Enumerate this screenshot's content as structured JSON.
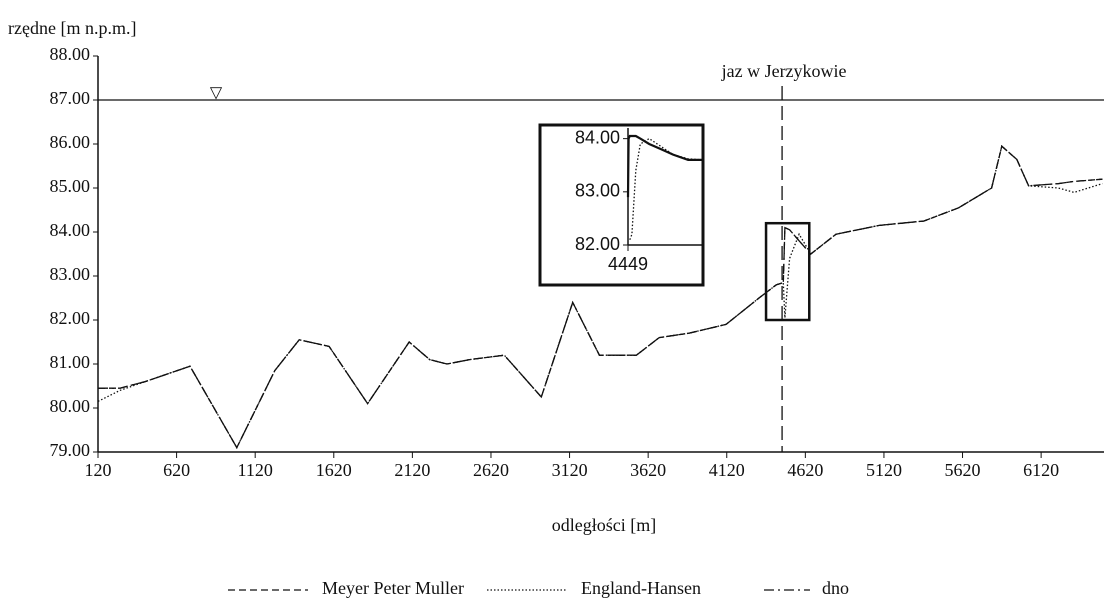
{
  "chart_data": [
    {
      "type": "line",
      "y_label": "rzędne [m n.p.m.]",
      "x_label": "odległości [m]",
      "xlim": [
        120,
        6520
      ],
      "ylim": [
        79,
        88
      ],
      "xticks": [
        120,
        620,
        1120,
        1620,
        2120,
        2620,
        3120,
        3620,
        4120,
        4620,
        5120,
        5620,
        6120
      ],
      "yticks": [
        {
          "value": 79,
          "label": "79.00"
        },
        {
          "value": 80,
          "label": "80.00"
        },
        {
          "value": 81,
          "label": "81.00"
        },
        {
          "value": 82,
          "label": "82.00"
        },
        {
          "value": 83,
          "label": "83.00"
        },
        {
          "value": 84,
          "label": "84.00"
        },
        {
          "value": 85,
          "label": "85.00"
        },
        {
          "value": 86,
          "label": "86.00"
        },
        {
          "value": 87,
          "label": "87.00"
        },
        {
          "value": 88,
          "label": "88.00"
        }
      ],
      "hline": 87,
      "vline": {
        "x": 4472,
        "label": "jaz w Jerzykowie"
      },
      "zoom_box": {
        "x": [
          4370,
          4645
        ],
        "y": [
          82,
          84.2
        ]
      },
      "x": [
        120,
        260,
        420,
        705,
        1003,
        1245,
        1400,
        1590,
        1835,
        2100,
        2230,
        2340,
        2485,
        2705,
        2940,
        3140,
        3310,
        3545,
        3690,
        3880,
        4115,
        4325,
        4435,
        4480,
        4490,
        4520,
        4580,
        4655,
        4815,
        5090,
        5375,
        5595,
        5805,
        5870,
        5965,
        6040,
        6230,
        6330,
        6510
      ],
      "series": [
        {
          "name": "Meyer Peter Muller",
          "color": "#111111",
          "dash": "dash",
          "values": [
            80.45,
            80.45,
            80.6,
            80.95,
            79.1,
            80.85,
            81.55,
            81.4,
            80.1,
            81.5,
            81.1,
            81.0,
            81.1,
            81.2,
            80.25,
            82.4,
            81.2,
            81.2,
            81.6,
            81.7,
            81.9,
            82.5,
            82.8,
            82.85,
            84.1,
            84.05,
            83.8,
            83.5,
            83.95,
            84.15,
            84.25,
            84.55,
            85.0,
            85.95,
            85.65,
            85.05,
            85.1,
            85.15,
            85.2
          ]
        },
        {
          "name": "England-Hansen",
          "color": "#111111",
          "dash": "dot",
          "values": [
            80.15,
            80.4,
            80.6,
            80.95,
            79.1,
            80.85,
            81.55,
            81.4,
            80.1,
            81.5,
            81.1,
            81.0,
            81.1,
            81.2,
            80.25,
            82.4,
            81.2,
            81.2,
            81.6,
            81.7,
            81.9,
            82.5,
            82.8,
            82.85,
            82.05,
            83.4,
            83.95,
            83.5,
            83.95,
            84.15,
            84.25,
            84.55,
            85.0,
            85.95,
            85.65,
            85.05,
            85.0,
            84.9,
            85.1
          ]
        },
        {
          "name": "dno",
          "color": "#111111",
          "dash": "dashdot",
          "values": [
            80.45,
            80.45,
            80.6,
            80.95,
            79.1,
            80.85,
            81.55,
            81.4,
            80.1,
            81.5,
            81.1,
            81.0,
            81.1,
            81.2,
            80.25,
            82.4,
            81.2,
            81.2,
            81.6,
            81.7,
            81.9,
            82.5,
            82.8,
            82.85,
            84.1,
            84.05,
            83.8,
            83.5,
            83.95,
            84.15,
            84.25,
            84.55,
            85.0,
            85.95,
            85.65,
            85.05,
            85.1,
            85.15,
            85.2
          ]
        }
      ]
    },
    {
      "type": "line",
      "xlim": [
        4449,
        4700
      ],
      "ylim": [
        82,
        84.2
      ],
      "xticks": [
        4449
      ],
      "yticks": [
        {
          "value": 82,
          "label": "82.00"
        },
        {
          "value": 83,
          "label": "83.00"
        },
        {
          "value": 84,
          "label": "84.00"
        }
      ],
      "x": [
        4449,
        4451,
        4455,
        4462,
        4475,
        4490,
        4520,
        4560,
        4600,
        4650,
        4700
      ],
      "series": [
        {
          "color": "#111111",
          "dash": "solid",
          "values": [
            82.9,
            84.0,
            84.05,
            84.05,
            84.05,
            84.0,
            83.9,
            83.8,
            83.7,
            83.6,
            83.6
          ]
        },
        {
          "color": "#111111",
          "dash": "dot",
          "values": [
            null,
            null,
            82.1,
            82.2,
            83.4,
            83.9,
            84.0,
            83.85,
            83.7,
            83.62,
            83.6
          ]
        }
      ]
    }
  ]
}
